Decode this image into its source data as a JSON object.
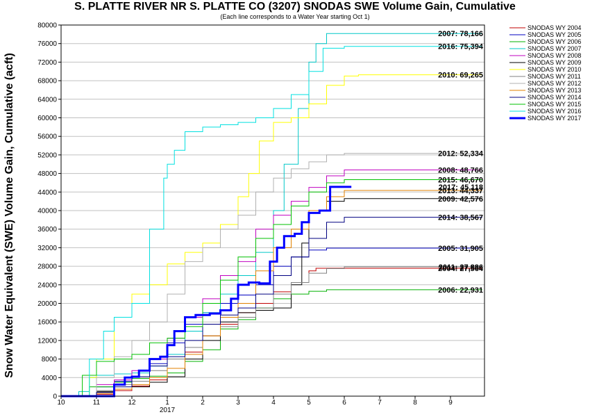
{
  "chart_data": {
    "type": "line",
    "title": "S. PLATTE RIVER NR S. PLATTE CO (3207) SNODAS SWE Volume Gain, Cumulative",
    "subtitle": "(Each line corresponds to a Water Year starting Oct 1)",
    "ylabel": "Snow Water Equivalent (SWE) Volume Gain, Cumulative (acft)",
    "xlabel": "",
    "ylim": [
      0,
      80000
    ],
    "yticks": [
      0,
      4000,
      8000,
      12000,
      16000,
      20000,
      24000,
      28000,
      32000,
      36000,
      40000,
      44000,
      48000,
      52000,
      56000,
      60000,
      64000,
      68000,
      72000,
      76000,
      80000
    ],
    "xlim": [
      0,
      12
    ],
    "x_unit": "month index from Oct 1",
    "xticks": [
      {
        "x": 0,
        "label": "10"
      },
      {
        "x": 1,
        "label": "11"
      },
      {
        "x": 2,
        "label": "12"
      },
      {
        "x": 3,
        "label": "1"
      },
      {
        "x": 4,
        "label": "2"
      },
      {
        "x": 5,
        "label": "3"
      },
      {
        "x": 6,
        "label": "4"
      },
      {
        "x": 7,
        "label": "5"
      },
      {
        "x": 8,
        "label": "6"
      },
      {
        "x": 9,
        "label": "7"
      },
      {
        "x": 10,
        "label": "8"
      },
      {
        "x": 11,
        "label": "9"
      }
    ],
    "year_label": {
      "x": 3,
      "label": "2017"
    },
    "grid": "horizontal",
    "legend_position": "right",
    "series": [
      {
        "name": "SNODAS WY 2004",
        "color": "#c00000",
        "width": 1,
        "end_label": "2004: 27,564",
        "points": [
          [
            0,
            0
          ],
          [
            0.5,
            0
          ],
          [
            1,
            400
          ],
          [
            1.5,
            1200
          ],
          [
            2,
            2200
          ],
          [
            2.5,
            3500
          ],
          [
            3,
            6000
          ],
          [
            3.5,
            9500
          ],
          [
            4,
            13000
          ],
          [
            4.5,
            15500
          ],
          [
            5,
            18000
          ],
          [
            5.5,
            20000
          ],
          [
            6,
            22500
          ],
          [
            6.5,
            24500
          ],
          [
            7,
            27000
          ],
          [
            7.2,
            27564
          ],
          [
            11.9,
            27564
          ]
        ]
      },
      {
        "name": "SNODAS WY 2005",
        "color": "#0000c0",
        "width": 1,
        "end_label": "2005: 31,905",
        "points": [
          [
            0,
            0
          ],
          [
            0.6,
            0
          ],
          [
            1,
            2000
          ],
          [
            1.5,
            3200
          ],
          [
            2,
            4200
          ],
          [
            2.5,
            7000
          ],
          [
            3,
            11500
          ],
          [
            3.5,
            15500
          ],
          [
            4,
            18000
          ],
          [
            4.5,
            20000
          ],
          [
            5,
            21800
          ],
          [
            5.5,
            24000
          ],
          [
            6,
            28000
          ],
          [
            6.5,
            30000
          ],
          [
            7,
            31500
          ],
          [
            7.5,
            31905
          ],
          [
            11.9,
            31905
          ]
        ]
      },
      {
        "name": "SNODAS WY 2006",
        "color": "#00b000",
        "width": 1,
        "end_label": "2006: 22,931",
        "points": [
          [
            0,
            0
          ],
          [
            0.4,
            0
          ],
          [
            0.8,
            2000
          ],
          [
            1.5,
            3000
          ],
          [
            2,
            3800
          ],
          [
            2.5,
            4300
          ],
          [
            3,
            5000
          ],
          [
            3.5,
            7500
          ],
          [
            4,
            10000
          ],
          [
            4.5,
            14500
          ],
          [
            5,
            16500
          ],
          [
            5.5,
            19000
          ],
          [
            6,
            21000
          ],
          [
            6.5,
            22000
          ],
          [
            7,
            22600
          ],
          [
            7.5,
            22931
          ],
          [
            11.9,
            22931
          ]
        ]
      },
      {
        "name": "SNODAS WY 2007",
        "color": "#00c8c8",
        "width": 1,
        "end_label": "2007: 78,166",
        "points": [
          [
            0,
            0
          ],
          [
            0.3,
            0
          ],
          [
            0.5,
            1000
          ],
          [
            0.8,
            4000
          ],
          [
            1,
            4500
          ],
          [
            1.5,
            4800
          ],
          [
            2,
            5000
          ],
          [
            2.5,
            6500
          ],
          [
            3,
            9000
          ],
          [
            3.5,
            14000
          ],
          [
            4,
            18000
          ],
          [
            4.5,
            22000
          ],
          [
            5,
            26000
          ],
          [
            5.5,
            31000
          ],
          [
            6,
            40000
          ],
          [
            6.3,
            50000
          ],
          [
            6.7,
            62000
          ],
          [
            7,
            72000
          ],
          [
            7.2,
            76000
          ],
          [
            7.5,
            78166
          ],
          [
            11.9,
            78166
          ]
        ]
      },
      {
        "name": "SNODAS WY 2008",
        "color": "#c000c0",
        "width": 1,
        "end_label": "2008: 48,766",
        "points": [
          [
            0,
            0
          ],
          [
            0.5,
            0
          ],
          [
            1,
            2500
          ],
          [
            1.5,
            3500
          ],
          [
            2,
            5500
          ],
          [
            2.5,
            8000
          ],
          [
            3,
            12500
          ],
          [
            3.5,
            17000
          ],
          [
            4,
            21000
          ],
          [
            4.5,
            26000
          ],
          [
            5,
            29000
          ],
          [
            5.5,
            36000
          ],
          [
            6,
            39000
          ],
          [
            6.5,
            42000
          ],
          [
            7,
            45000
          ],
          [
            7.5,
            47500
          ],
          [
            8,
            48766
          ],
          [
            11.9,
            48766
          ]
        ]
      },
      {
        "name": "SNODAS WY 2009",
        "color": "#000000",
        "width": 1,
        "end_label": "2009: 42,576",
        "points": [
          [
            0,
            0
          ],
          [
            0.5,
            0
          ],
          [
            1,
            1000
          ],
          [
            1.5,
            1500
          ],
          [
            2,
            2000
          ],
          [
            2.5,
            3000
          ],
          [
            3,
            4200
          ],
          [
            3.5,
            8000
          ],
          [
            4,
            12000
          ],
          [
            4.5,
            16000
          ],
          [
            5,
            18000
          ],
          [
            5.5,
            18500
          ],
          [
            6,
            19000
          ],
          [
            6.5,
            24000
          ],
          [
            6.8,
            33000
          ],
          [
            7,
            40000
          ],
          [
            7.5,
            42000
          ],
          [
            8,
            42576
          ],
          [
            11.9,
            42576
          ]
        ]
      },
      {
        "name": "SNODAS WY 2010",
        "color": "#ffff00",
        "width": 1,
        "end_label": "2010: 69,265",
        "points": [
          [
            0,
            0
          ],
          [
            0.5,
            0
          ],
          [
            0.8,
            4000
          ],
          [
            1,
            8000
          ],
          [
            1.5,
            17000
          ],
          [
            2,
            22000
          ],
          [
            2.5,
            24000
          ],
          [
            3,
            28500
          ],
          [
            3.5,
            31000
          ],
          [
            4,
            33000
          ],
          [
            4.5,
            37000
          ],
          [
            5,
            43000
          ],
          [
            5.3,
            48000
          ],
          [
            5.6,
            55000
          ],
          [
            6,
            59000
          ],
          [
            6.5,
            60000
          ],
          [
            7,
            63000
          ],
          [
            7.5,
            67000
          ],
          [
            8,
            69000
          ],
          [
            8.4,
            69265
          ],
          [
            11.9,
            69265
          ]
        ]
      },
      {
        "name": "SNODAS WY 2011",
        "color": "#808080",
        "width": 1,
        "end_label": "2011: 27,886",
        "points": [
          [
            0,
            0
          ],
          [
            0.5,
            0
          ],
          [
            1,
            1200
          ],
          [
            1.5,
            2500
          ],
          [
            2,
            3200
          ],
          [
            2.5,
            5500
          ],
          [
            3,
            8000
          ],
          [
            3.5,
            10500
          ],
          [
            4,
            13000
          ],
          [
            4.5,
            15000
          ],
          [
            5,
            17000
          ],
          [
            5.5,
            19000
          ],
          [
            6,
            22000
          ],
          [
            6.5,
            24500
          ],
          [
            7,
            26500
          ],
          [
            7.5,
            27500
          ],
          [
            8,
            27886
          ],
          [
            11.9,
            27886
          ]
        ]
      },
      {
        "name": "SNODAS WY 2012",
        "color": "#b0b0b0",
        "width": 1,
        "end_label": "2012: 52,334",
        "points": [
          [
            0,
            0
          ],
          [
            0.5,
            0
          ],
          [
            1,
            4000
          ],
          [
            1.5,
            8500
          ],
          [
            2,
            12000
          ],
          [
            2.5,
            16000
          ],
          [
            3,
            22000
          ],
          [
            3.5,
            29000
          ],
          [
            4,
            32000
          ],
          [
            4.5,
            36000
          ],
          [
            5,
            39000
          ],
          [
            5.5,
            44000
          ],
          [
            6,
            47000
          ],
          [
            6.5,
            49000
          ],
          [
            7,
            50500
          ],
          [
            7.5,
            52000
          ],
          [
            8,
            52334
          ],
          [
            11.9,
            52334
          ]
        ]
      },
      {
        "name": "SNODAS WY 2013",
        "color": "#e08000",
        "width": 1,
        "end_label": "2013: 44,337",
        "points": [
          [
            0,
            0
          ],
          [
            0.5,
            0
          ],
          [
            1,
            600
          ],
          [
            1.5,
            1500
          ],
          [
            2,
            2500
          ],
          [
            2.5,
            4000
          ],
          [
            3,
            6000
          ],
          [
            3.5,
            9000
          ],
          [
            4,
            13000
          ],
          [
            4.5,
            17000
          ],
          [
            5,
            20000
          ],
          [
            5.5,
            27000
          ],
          [
            6,
            32000
          ],
          [
            6.5,
            36000
          ],
          [
            7,
            40000
          ],
          [
            7.5,
            43000
          ],
          [
            8,
            44337
          ],
          [
            11.9,
            44337
          ]
        ]
      },
      {
        "name": "SNODAS WY 2014",
        "color": "#000080",
        "width": 1,
        "end_label": "2014: 38,567",
        "points": [
          [
            0,
            0
          ],
          [
            0.5,
            0
          ],
          [
            1,
            800
          ],
          [
            1.5,
            2000
          ],
          [
            2,
            4200
          ],
          [
            2.5,
            6500
          ],
          [
            3,
            8500
          ],
          [
            3.5,
            12000
          ],
          [
            4,
            15500
          ],
          [
            4.5,
            17500
          ],
          [
            5,
            19000
          ],
          [
            5.5,
            22000
          ],
          [
            6,
            26000
          ],
          [
            6.5,
            30000
          ],
          [
            7,
            34000
          ],
          [
            7.5,
            37500
          ],
          [
            8,
            38567
          ],
          [
            11.9,
            38567
          ]
        ]
      },
      {
        "name": "SNODAS WY 2015",
        "color": "#00c000",
        "width": 1,
        "end_label": "2015: 46,670",
        "points": [
          [
            0,
            0
          ],
          [
            0.3,
            0
          ],
          [
            0.6,
            4500
          ],
          [
            1,
            7500
          ],
          [
            1.5,
            8000
          ],
          [
            2,
            9000
          ],
          [
            2.5,
            11500
          ],
          [
            3,
            12500
          ],
          [
            3.5,
            15000
          ],
          [
            4,
            20000
          ],
          [
            4.5,
            25000
          ],
          [
            5,
            30000
          ],
          [
            5.5,
            34000
          ],
          [
            6,
            37000
          ],
          [
            6.5,
            41000
          ],
          [
            7,
            44000
          ],
          [
            7.5,
            46000
          ],
          [
            8,
            46670
          ],
          [
            11.9,
            46670
          ]
        ]
      },
      {
        "name": "SNODAS WY 2016",
        "color": "#00e0e0",
        "width": 1,
        "end_label": "2016: 75,394",
        "points": [
          [
            0,
            0
          ],
          [
            0.5,
            0
          ],
          [
            0.8,
            8000
          ],
          [
            1.2,
            14000
          ],
          [
            1.5,
            17000
          ],
          [
            2,
            20000
          ],
          [
            2.5,
            36000
          ],
          [
            2.9,
            47000
          ],
          [
            3,
            50000
          ],
          [
            3.2,
            53000
          ],
          [
            3.5,
            57000
          ],
          [
            4,
            58000
          ],
          [
            4.5,
            58500
          ],
          [
            5,
            59000
          ],
          [
            5.5,
            60000
          ],
          [
            6,
            62000
          ],
          [
            6.5,
            65000
          ],
          [
            7,
            70000
          ],
          [
            7.4,
            75000
          ],
          [
            8,
            75394
          ],
          [
            11.9,
            75394
          ]
        ]
      },
      {
        "name": "SNODAS WY 2017",
        "color": "#0000ff",
        "width": 3,
        "end_label": "2017: 45,118",
        "points": [
          [
            0,
            0
          ],
          [
            0.5,
            0
          ],
          [
            1,
            0
          ],
          [
            1.3,
            0
          ],
          [
            1.5,
            2500
          ],
          [
            1.8,
            4000
          ],
          [
            2,
            4200
          ],
          [
            2.2,
            5500
          ],
          [
            2.5,
            8000
          ],
          [
            2.8,
            8500
          ],
          [
            3,
            11000
          ],
          [
            3.2,
            14000
          ],
          [
            3.5,
            17000
          ],
          [
            3.8,
            17500
          ],
          [
            4,
            17500
          ],
          [
            4.2,
            17800
          ],
          [
            4.5,
            18500
          ],
          [
            4.8,
            21000
          ],
          [
            5,
            24000
          ],
          [
            5.3,
            24500
          ],
          [
            5.6,
            24300
          ],
          [
            5.9,
            29000
          ],
          [
            6.1,
            32000
          ],
          [
            6.3,
            34500
          ],
          [
            6.6,
            35000
          ],
          [
            6.8,
            37500
          ],
          [
            7,
            39500
          ],
          [
            7.3,
            40000
          ],
          [
            7.6,
            45118
          ],
          [
            8.2,
            45118
          ]
        ]
      }
    ]
  }
}
